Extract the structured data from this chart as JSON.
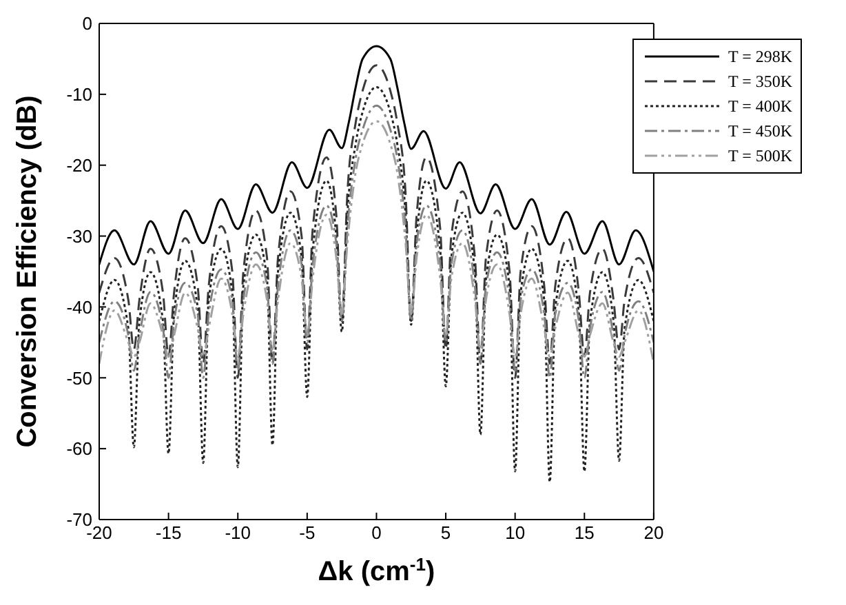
{
  "chart_data": {
    "type": "line",
    "xlabel": "Δk (cm$^{-1}$)",
    "ylabel": "Conversion Efficiency (dB)",
    "xlim": [
      -20,
      20
    ],
    "xticks": [
      -20,
      -15,
      -10,
      -5,
      0,
      5,
      10,
      15,
      20
    ],
    "ylim": [
      -70,
      0
    ],
    "yticks": [
      -70,
      -60,
      -50,
      -40,
      -30,
      -20,
      -10,
      0
    ],
    "legend": "top right",
    "marker": "none",
    "x": [
      -20,
      -18.9,
      -17.9,
      -17.5,
      -17.1,
      -16.3,
      -15.4,
      -15,
      -14.6,
      -13.8,
      -12.9,
      -12.5,
      -12.1,
      -11.2,
      -10.4,
      -10,
      -9.6,
      -8.7,
      -7.9,
      -7.5,
      -7.1,
      -6.2,
      -5.4,
      -5,
      -4.6,
      -3.6,
      -2.9,
      -2.5,
      -2.1,
      -1.5,
      -1,
      0,
      1,
      1.5,
      2.1,
      2.5,
      2.9,
      3.6,
      4.6,
      5,
      5.4,
      6.2,
      7.1,
      7.5,
      7.9,
      8.7,
      9.6,
      10,
      10.4,
      11.2,
      12.1,
      12.5,
      12.9,
      13.8,
      14.6,
      15,
      15.4,
      16.3,
      17.1,
      17.5,
      17.9,
      18.9,
      20
    ],
    "series": [
      {
        "name": "T = 298K",
        "color": "#000000",
        "line_style": "solid",
        "x": [
          -20,
          -18.9,
          -17.5,
          -16.3,
          -15,
          -13.8,
          -12.5,
          -11.2,
          -10,
          -8.7,
          -7.5,
          -6.1,
          -5,
          -3.4,
          -2.5,
          -2,
          -1.5,
          -1,
          0,
          1,
          1.5,
          2,
          2.5,
          3.4,
          5,
          6,
          7.5,
          8.6,
          10,
          11.2,
          12.5,
          13.7,
          15,
          16.3,
          17.5,
          18.7,
          20
        ],
        "values": [
          -34,
          -29.2,
          -34,
          -27.9,
          -32.5,
          -26.4,
          -31,
          -24.8,
          -29,
          -22.7,
          -26.7,
          -19.6,
          -23.2,
          -15,
          -17.6,
          -14,
          -9,
          -5,
          -3.2,
          -5,
          -9,
          -14,
          -17.7,
          -15.2,
          -23.3,
          -19.6,
          -26.8,
          -22.7,
          -29,
          -24.8,
          -31.2,
          -26.6,
          -32.5,
          -27.9,
          -34,
          -29.2,
          -35
        ]
      },
      {
        "name": "T = 350K",
        "color": "#3a3a3a",
        "line_style": "dashed",
        "values": [
          -38,
          -33.1,
          -39,
          -46,
          -39,
          -31.8,
          -38,
          -47,
          -38,
          -30.3,
          -37,
          -48,
          -37,
          -28.6,
          -35,
          -50,
          -35,
          -26.4,
          -33,
          -48,
          -33,
          -23.7,
          -30,
          -46,
          -29,
          -18.9,
          -27,
          -42,
          -24,
          -14,
          -9.5,
          -5.9,
          -9.5,
          -14,
          -24,
          -42,
          -27,
          -18.9,
          -29,
          -46,
          -30,
          -23.7,
          -33,
          -48,
          -33,
          -26.4,
          -35,
          -50,
          -35,
          -28.6,
          -37,
          -48,
          -37,
          -30.3,
          -38,
          -47,
          -38,
          -31.8,
          -39,
          -46,
          -39,
          -33.1,
          -38
        ]
      },
      {
        "name": "T = 400K",
        "color": "#222222",
        "line_style": "dotted",
        "values": [
          -42,
          -36.2,
          -43,
          -59.8,
          -42,
          -35.1,
          -42,
          -60.7,
          -41,
          -33.5,
          -40,
          -62,
          -39,
          -31.8,
          -38,
          -62.6,
          -37,
          -29.8,
          -36,
          -59.5,
          -35,
          -26.7,
          -33,
          -52.7,
          -32,
          -22.2,
          -30,
          -43.5,
          -27,
          -17,
          -12.5,
          -9,
          -12.5,
          -17,
          -27,
          -42.5,
          -30,
          -22.2,
          -32,
          -51.2,
          -33,
          -26.7,
          -35,
          -58,
          -36,
          -29.8,
          -37,
          -63.2,
          -38,
          -31.8,
          -39,
          -64.7,
          -40,
          -33.5,
          -41,
          -63.2,
          -42,
          -35.1,
          -42,
          -61.7,
          -43,
          -36.2,
          -42
        ]
      },
      {
        "name": "T = 450K",
        "color": "#808080",
        "line_style": "dashdot",
        "values": [
          -45,
          -39.2,
          -44,
          -49,
          -44,
          -37.9,
          -43,
          -50,
          -42,
          -36.6,
          -41,
          -50,
          -41,
          -34.7,
          -39,
          -49,
          -39,
          -32.3,
          -37,
          -48,
          -37,
          -29.2,
          -34,
          -45,
          -34,
          -25.7,
          -31,
          -42,
          -29,
          -19,
          -15,
          -11.6,
          -15,
          -19,
          -29,
          -42,
          -31,
          -25.7,
          -34,
          -45,
          -34,
          -29.2,
          -37,
          -48,
          -37,
          -32.3,
          -39,
          -49,
          -39,
          -34.7,
          -41,
          -50,
          -41,
          -36.6,
          -42,
          -50,
          -43,
          -37.9,
          -44,
          -49,
          -44,
          -39.2,
          -45
        ]
      },
      {
        "name": "T = 500K",
        "color": "#a0a0a0",
        "line_style": "dashdotdot",
        "values": [
          -48,
          -40.5,
          -45,
          -47,
          -45,
          -39.5,
          -44,
          -47,
          -44,
          -38,
          -43,
          -47,
          -43,
          -36,
          -41,
          -47,
          -41,
          -34,
          -39,
          -46,
          -39,
          -31,
          -36,
          -44,
          -36,
          -27,
          -33,
          -41,
          -31,
          -21,
          -17,
          -13.8,
          -17,
          -21,
          -31,
          -41,
          -33,
          -27,
          -36,
          -44,
          -36,
          -31,
          -39,
          -46,
          -39,
          -34,
          -41,
          -47,
          -41,
          -36,
          -43,
          -47,
          -43,
          -38,
          -44,
          -47,
          -44,
          -39.5,
          -45,
          -47,
          -45,
          -40.5,
          -48
        ]
      }
    ]
  }
}
